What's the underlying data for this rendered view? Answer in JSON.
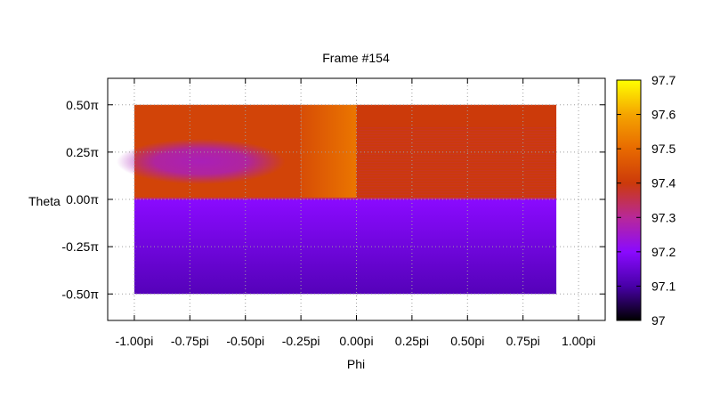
{
  "chart_data": {
    "type": "heatmap",
    "title": "Frame #154",
    "xlabel": "Phi",
    "ylabel": "Theta",
    "xlim": [
      -1.12,
      1.12
    ],
    "ylim": [
      -0.64,
      0.64
    ],
    "x_ticks": [
      {
        "value": -1.0,
        "label": "-1.00pi"
      },
      {
        "value": -0.75,
        "label": "-0.75pi"
      },
      {
        "value": -0.5,
        "label": "-0.50pi"
      },
      {
        "value": -0.25,
        "label": "-0.25pi"
      },
      {
        "value": 0.0,
        "label": "0.00pi"
      },
      {
        "value": 0.25,
        "label": "0.25pi"
      },
      {
        "value": 0.5,
        "label": "0.50pi"
      },
      {
        "value": 0.75,
        "label": "0.75pi"
      },
      {
        "value": 1.0,
        "label": "1.00pi"
      }
    ],
    "y_ticks": [
      {
        "value": 0.5,
        "label": "0.50π"
      },
      {
        "value": 0.25,
        "label": "0.25π"
      },
      {
        "value": 0.0,
        "label": "0.00π"
      },
      {
        "value": -0.25,
        "label": "-0.25π"
      },
      {
        "value": -0.5,
        "label": "-0.50π"
      }
    ],
    "grid": true,
    "data_extent": {
      "phi": [
        -1.0,
        0.9
      ],
      "theta": [
        -0.5,
        0.5
      ]
    },
    "colorbar": {
      "range": [
        97.0,
        97.7
      ],
      "ticks": [
        {
          "value": 97.7,
          "label": "97.7"
        },
        {
          "value": 97.6,
          "label": "97.6"
        },
        {
          "value": 97.5,
          "label": "97.5"
        },
        {
          "value": 97.4,
          "label": "97.4"
        },
        {
          "value": 97.3,
          "label": "97.3"
        },
        {
          "value": 97.2,
          "label": "97.2"
        },
        {
          "value": 97.1,
          "label": "97.1"
        },
        {
          "value": 97.0,
          "label": "97"
        }
      ],
      "stops": [
        {
          "value": 97.0,
          "color": "#000000"
        },
        {
          "value": 97.1,
          "color": "#4800a8"
        },
        {
          "value": 97.2,
          "color": "#8a0aff"
        },
        {
          "value": 97.3,
          "color": "#b82899"
        },
        {
          "value": 97.4,
          "color": "#cc3a0a"
        },
        {
          "value": 97.5,
          "color": "#e86a00"
        },
        {
          "value": 97.6,
          "color": "#f5a400"
        },
        {
          "value": 97.7,
          "color": "#ffff00"
        }
      ]
    },
    "regions": [
      {
        "name": "lower-half",
        "phi": [
          -1.0,
          0.9
        ],
        "theta": [
          -0.5,
          0.0
        ],
        "value_at_top": 97.2,
        "value_at_bottom": 97.12
      },
      {
        "name": "upper-left",
        "phi": [
          -1.0,
          -0.25
        ],
        "theta": [
          0.0,
          0.5
        ],
        "value": 97.42
      },
      {
        "name": "upper-left-blob",
        "phi_center": -0.7,
        "theta_center": 0.2,
        "phi_radius": 0.38,
        "theta_radius": 0.12,
        "value": 97.27
      },
      {
        "name": "upper-middle",
        "phi": [
          -0.25,
          0.0
        ],
        "theta": [
          0.0,
          0.5
        ],
        "value_left": 97.44,
        "value_right": 97.52
      },
      {
        "name": "upper-right",
        "phi": [
          0.0,
          0.9
        ],
        "theta": [
          0.0,
          0.5
        ],
        "value": 97.4,
        "striped": true
      }
    ]
  }
}
